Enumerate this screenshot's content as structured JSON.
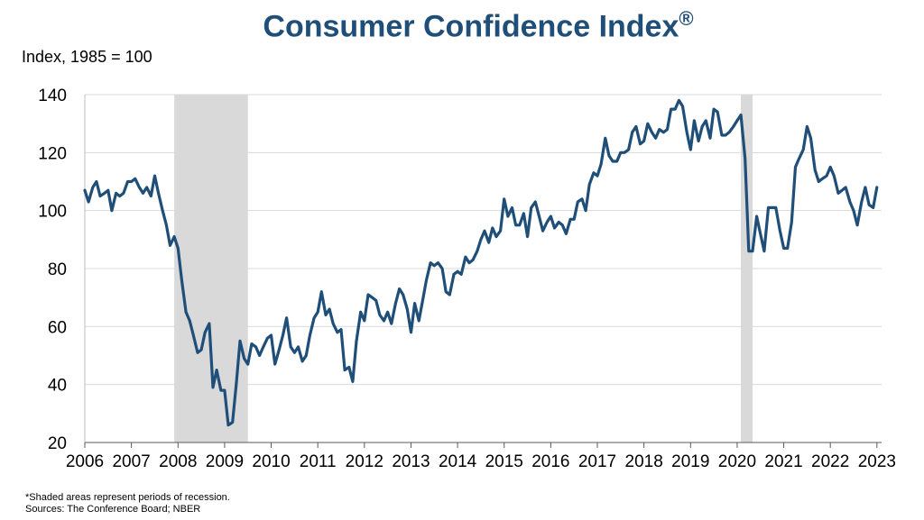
{
  "chart_data": {
    "type": "line",
    "title": "Consumer Confidence Index",
    "title_mark": "®",
    "ylabel": "Index, 1985 = 100",
    "xlabel": "",
    "ylim": [
      20,
      140
    ],
    "yticks": [
      20,
      40,
      60,
      80,
      100,
      120,
      140
    ],
    "xlim": [
      2006,
      2023.1
    ],
    "xticks": [
      2006,
      2007,
      2008,
      2009,
      2010,
      2011,
      2012,
      2013,
      2014,
      2015,
      2016,
      2017,
      2018,
      2019,
      2020,
      2021,
      2022,
      2023
    ],
    "grid": "horizontal",
    "line_color": "#1F4E79",
    "shade_color": "#D9D9D9",
    "recessions": [
      [
        2007.92,
        2009.5
      ],
      [
        2020.08,
        2020.33
      ]
    ],
    "series": [
      {
        "x": [
          2006.0,
          2006.08,
          2006.17,
          2006.25,
          2006.33,
          2006.42,
          2006.5,
          2006.58,
          2006.67,
          2006.75,
          2006.83,
          2006.92,
          2007.0,
          2007.08,
          2007.17,
          2007.25,
          2007.33,
          2007.42,
          2007.5,
          2007.58,
          2007.67,
          2007.75,
          2007.83,
          2007.92,
          2008.0,
          2008.08,
          2008.17,
          2008.25,
          2008.33,
          2008.42,
          2008.5,
          2008.58,
          2008.67,
          2008.75,
          2008.83,
          2008.92,
          2009.0,
          2009.08,
          2009.17,
          2009.25,
          2009.33,
          2009.42,
          2009.5,
          2009.58,
          2009.67,
          2009.75,
          2009.83,
          2009.92,
          2010.0,
          2010.08,
          2010.17,
          2010.25,
          2010.33,
          2010.42,
          2010.5,
          2010.58,
          2010.67,
          2010.75,
          2010.83,
          2010.92,
          2011.0,
          2011.08,
          2011.17,
          2011.25,
          2011.33,
          2011.42,
          2011.5,
          2011.58,
          2011.67,
          2011.75,
          2011.83,
          2011.92,
          2012.0,
          2012.08,
          2012.17,
          2012.25,
          2012.33,
          2012.42,
          2012.5,
          2012.58,
          2012.67,
          2012.75,
          2012.83,
          2012.92,
          2013.0,
          2013.08,
          2013.17,
          2013.25,
          2013.33,
          2013.42,
          2013.5,
          2013.58,
          2013.67,
          2013.75,
          2013.83,
          2013.92,
          2014.0,
          2014.08,
          2014.17,
          2014.25,
          2014.33,
          2014.42,
          2014.5,
          2014.58,
          2014.67,
          2014.75,
          2014.83,
          2014.92,
          2015.0,
          2015.08,
          2015.17,
          2015.25,
          2015.33,
          2015.42,
          2015.5,
          2015.58,
          2015.67,
          2015.75,
          2015.83,
          2015.92,
          2016.0,
          2016.08,
          2016.17,
          2016.25,
          2016.33,
          2016.42,
          2016.5,
          2016.58,
          2016.67,
          2016.75,
          2016.83,
          2016.92,
          2017.0,
          2017.08,
          2017.17,
          2017.25,
          2017.33,
          2017.42,
          2017.5,
          2017.58,
          2017.67,
          2017.75,
          2017.83,
          2017.92,
          2018.0,
          2018.08,
          2018.17,
          2018.25,
          2018.33,
          2018.42,
          2018.5,
          2018.58,
          2018.67,
          2018.75,
          2018.83,
          2018.92,
          2019.0,
          2019.08,
          2019.17,
          2019.25,
          2019.33,
          2019.42,
          2019.5,
          2019.58,
          2019.67,
          2019.75,
          2019.83,
          2019.92,
          2020.0,
          2020.08,
          2020.17,
          2020.25,
          2020.33,
          2020.42,
          2020.5,
          2020.58,
          2020.67,
          2020.75,
          2020.83,
          2020.92,
          2021.0,
          2021.08,
          2021.17,
          2021.25,
          2021.33,
          2021.42,
          2021.5,
          2021.58,
          2021.67,
          2021.75,
          2021.83,
          2021.92,
          2022.0,
          2022.08,
          2022.17,
          2022.25,
          2022.33,
          2022.42,
          2022.5,
          2022.58,
          2022.67,
          2022.75,
          2022.83,
          2022.92,
          2023.0
        ],
        "values": [
          107,
          103,
          108,
          110,
          105,
          106,
          107,
          100,
          106,
          105,
          106,
          110,
          110,
          111,
          108,
          106,
          108,
          105,
          112,
          106,
          100,
          95,
          88,
          91,
          87,
          76,
          65,
          62,
          57,
          51,
          52,
          58,
          61,
          39,
          45,
          38,
          38,
          26,
          27,
          40,
          55,
          49,
          47,
          54,
          53,
          50,
          53,
          56,
          57,
          47,
          52,
          57,
          63,
          53,
          51,
          53,
          48,
          50,
          57,
          63,
          65,
          72,
          64,
          66,
          61,
          58,
          59,
          45,
          46,
          41,
          55,
          65,
          62,
          71,
          70,
          69,
          64,
          62,
          65,
          61,
          68,
          73,
          71,
          66,
          58,
          68,
          62,
          69,
          76,
          82,
          81,
          82,
          80,
          72,
          71,
          78,
          79,
          78,
          84,
          82,
          83,
          86,
          90,
          93,
          89,
          94,
          91,
          93,
          104,
          98,
          101,
          95,
          95,
          99,
          91,
          101,
          103,
          98,
          93,
          96,
          98,
          94,
          96,
          95,
          92,
          97,
          97,
          103,
          104,
          100,
          109,
          113,
          112,
          116,
          125,
          119,
          117,
          117,
          120,
          120,
          121,
          127,
          129,
          123,
          124,
          130,
          127,
          125,
          128,
          127,
          128,
          135,
          135,
          138,
          136,
          127,
          121,
          131,
          124,
          129,
          131,
          125,
          135,
          134,
          126,
          126,
          127,
          129,
          131,
          133,
          118,
          86,
          86,
          98,
          92,
          86,
          101,
          101,
          101,
          93,
          87,
          87,
          96,
          115,
          118,
          121,
          129,
          125,
          114,
          110,
          111,
          112,
          115,
          112,
          106,
          107,
          108,
          103,
          100,
          95,
          103,
          108,
          102,
          101,
          108
        ]
      }
    ]
  },
  "notes": {
    "line1": "*Shaded areas represent periods of recession.",
    "line2": "Sources: The Conference Board; NBER"
  }
}
